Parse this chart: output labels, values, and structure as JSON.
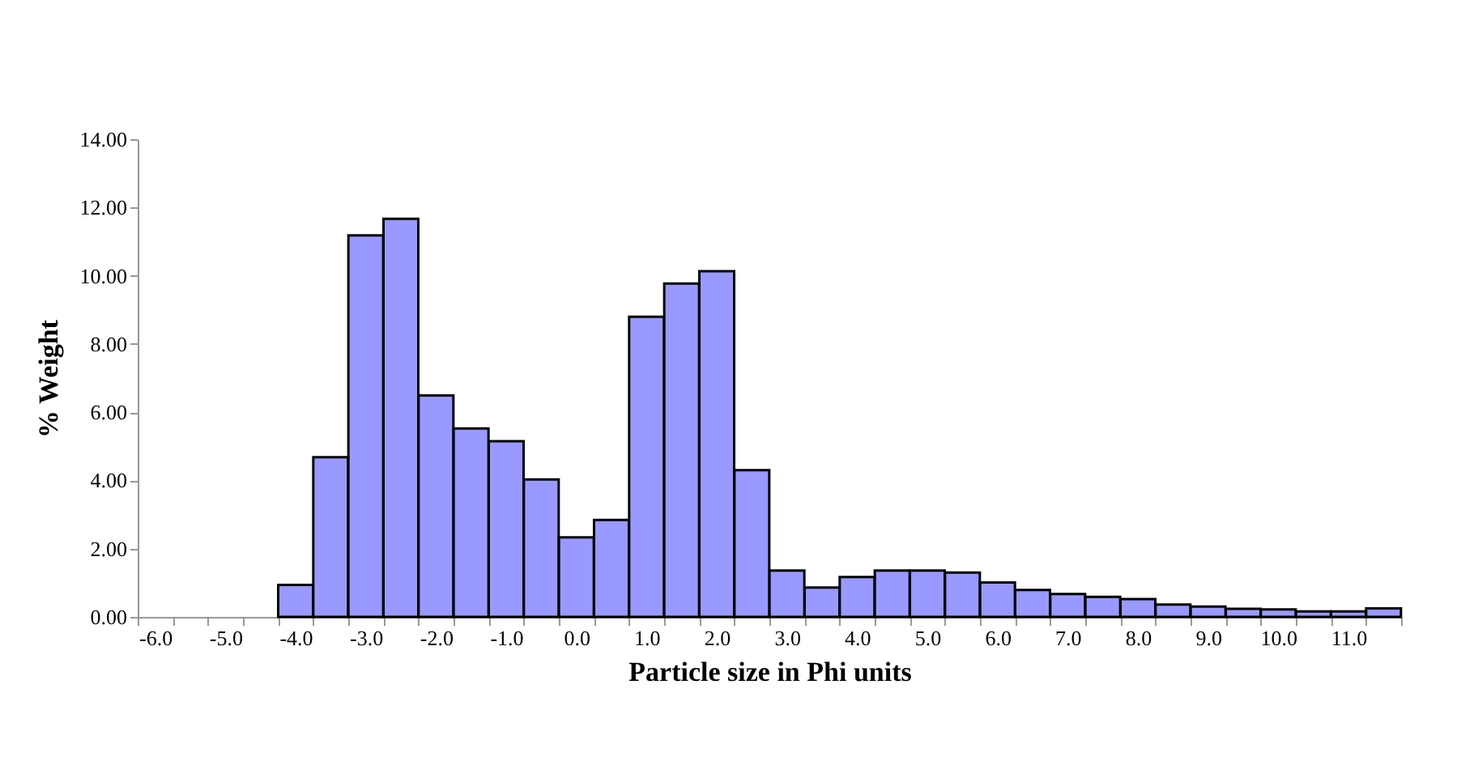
{
  "chart_data": {
    "type": "bar",
    "xlabel": "Particle size in Phi units",
    "ylabel": "% Weight",
    "categories": [
      "-6.0",
      null,
      "-5.0",
      null,
      "-4.0",
      null,
      "-3.0",
      null,
      "-2.0",
      null,
      "-1.0",
      null,
      "0.0",
      null,
      "1.0",
      null,
      "2.0",
      null,
      "3.0",
      null,
      "4.0",
      null,
      "5.0",
      null,
      "6.0",
      null,
      "7.0",
      null,
      "8.0",
      null,
      "9.0",
      null,
      "10.0",
      null,
      "11.0",
      null
    ],
    "values": [
      null,
      null,
      null,
      null,
      0.94,
      4.68,
      11.18,
      11.67,
      6.49,
      5.52,
      5.15,
      4.03,
      2.33,
      2.84,
      8.8,
      9.77,
      10.13,
      4.3,
      1.36,
      0.86,
      1.17,
      1.36,
      1.36,
      1.3,
      1.01,
      0.79,
      0.67,
      0.59,
      0.52,
      0.36,
      0.3,
      0.24,
      0.22,
      0.16,
      0.16,
      0.25
    ],
    "color": "#9999ff",
    "ylim": [
      0,
      14
    ],
    "yticks": [
      {
        "value": 0,
        "label": "0.00"
      },
      {
        "value": 2,
        "label": "2.00"
      },
      {
        "value": 4,
        "label": "4.00"
      },
      {
        "value": 6,
        "label": "6.00"
      },
      {
        "value": 8,
        "label": "8.00"
      },
      {
        "value": 10,
        "label": "10.00"
      },
      {
        "value": 12,
        "label": "12.00"
      },
      {
        "value": 14,
        "label": "14.00"
      }
    ],
    "grid": false
  }
}
